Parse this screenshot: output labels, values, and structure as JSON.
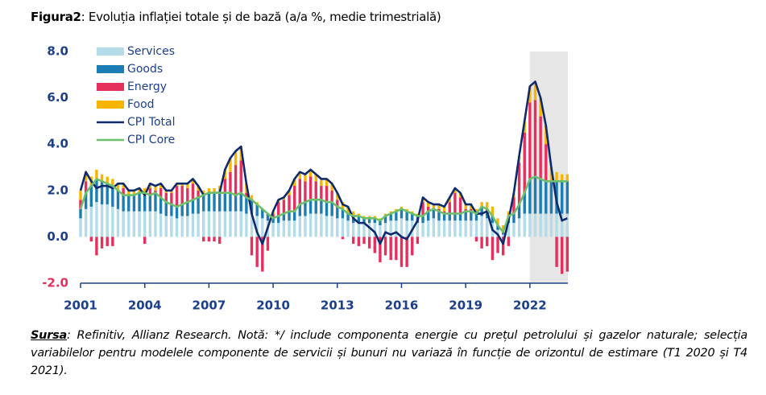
{
  "chart_data": {
    "type": "bar",
    "title_prefix": "Figura2",
    "title": ": Evoluția inflației totale și de bază (a/a %, medie trimestrială)",
    "source_label": "Sursa",
    "source_text": ": Refinitiv, Allianz Research. Notă: */ include componenta energie cu prețul petrolului și gazelor naturale; selecția variabilelor pentru modelele componente de servicii și bunuri nu variază în funcție de orizontul de estimare (T1 2020 și T4 2021).",
    "xlim": [
      2001,
      2024
    ],
    "xticks": [
      2001,
      2004,
      2007,
      2010,
      2013,
      2016,
      2019,
      2022
    ],
    "ylim": [
      -2,
      8
    ],
    "yticks": [
      {
        "value": -2,
        "label": "-2.0"
      },
      {
        "value": 0,
        "label": "0.0"
      },
      {
        "value": 2,
        "label": "2.0"
      },
      {
        "value": 4,
        "label": "4.0"
      },
      {
        "value": 6,
        "label": "6.0"
      },
      {
        "value": 8,
        "label": "8.0"
      }
    ],
    "shaded_x": [
      2022,
      2024
    ],
    "shade_color": "#e6e6e6",
    "x": [
      2001,
      2001.25,
      2001.5,
      2001.75,
      2002,
      2002.25,
      2002.5,
      2002.75,
      2003,
      2003.25,
      2003.5,
      2003.75,
      2004,
      2004.25,
      2004.5,
      2004.75,
      2005,
      2005.25,
      2005.5,
      2005.75,
      2006,
      2006.25,
      2006.5,
      2006.75,
      2007,
      2007.25,
      2007.5,
      2007.75,
      2008,
      2008.25,
      2008.5,
      2008.75,
      2009,
      2009.25,
      2009.5,
      2009.75,
      2010,
      2010.25,
      2010.5,
      2010.75,
      2011,
      2011.25,
      2011.5,
      2011.75,
      2012,
      2012.25,
      2012.5,
      2012.75,
      2013,
      2013.25,
      2013.5,
      2013.75,
      2014,
      2014.25,
      2014.5,
      2014.75,
      2015,
      2015.25,
      2015.5,
      2015.75,
      2016,
      2016.25,
      2016.5,
      2016.75,
      2017,
      2017.25,
      2017.5,
      2017.75,
      2018,
      2018.25,
      2018.5,
      2018.75,
      2019,
      2019.25,
      2019.5,
      2019.75,
      2020,
      2020.25,
      2020.5,
      2020.75,
      2021,
      2021.25,
      2021.5,
      2021.75,
      2022,
      2022.25,
      2022.5,
      2022.75,
      2023,
      2023.25,
      2023.5,
      2023.75
    ],
    "series": [
      {
        "name": "Services",
        "type": "bar",
        "color": "#b3dbe8",
        "values": [
          0.8,
          1.2,
          1.3,
          1.5,
          1.4,
          1.4,
          1.3,
          1.2,
          1.1,
          1.1,
          1.1,
          1.1,
          1.1,
          1.1,
          1.1,
          1.0,
          0.9,
          0.9,
          0.8,
          0.9,
          0.9,
          1.0,
          1.0,
          1.1,
          1.1,
          1.1,
          1.1,
          1.1,
          1.1,
          1.1,
          1.1,
          1.0,
          1.0,
          0.9,
          0.8,
          0.7,
          0.6,
          0.6,
          0.7,
          0.7,
          0.7,
          0.9,
          0.9,
          1.0,
          1.0,
          1.0,
          0.9,
          0.9,
          0.8,
          0.8,
          0.7,
          0.6,
          0.6,
          0.6,
          0.6,
          0.6,
          0.5,
          0.6,
          0.7,
          0.7,
          0.8,
          0.7,
          0.7,
          0.6,
          0.6,
          0.7,
          0.8,
          0.7,
          0.7,
          0.7,
          0.7,
          0.7,
          0.7,
          0.7,
          0.7,
          0.9,
          0.8,
          0.6,
          0.3,
          0.1,
          0.6,
          0.6,
          0.8,
          1.0,
          1.0,
          1.0,
          1.0,
          1.0,
          1.0,
          1.0,
          1.0,
          1.0
        ]
      },
      {
        "name": "Goods",
        "type": "bar",
        "color": "#1b7db3",
        "values": [
          0.4,
          0.7,
          0.9,
          1.0,
          1.0,
          0.9,
          0.9,
          0.8,
          0.7,
          0.7,
          0.7,
          0.8,
          0.8,
          0.7,
          0.8,
          0.7,
          0.6,
          0.5,
          0.5,
          0.5,
          0.6,
          0.6,
          0.7,
          0.7,
          0.8,
          0.8,
          0.8,
          0.8,
          0.8,
          0.7,
          0.8,
          0.7,
          0.6,
          0.5,
          0.4,
          0.3,
          0.2,
          0.3,
          0.3,
          0.4,
          0.4,
          0.5,
          0.6,
          0.6,
          0.6,
          0.6,
          0.6,
          0.6,
          0.5,
          0.4,
          0.3,
          0.3,
          0.3,
          0.2,
          0.2,
          0.2,
          0.2,
          0.3,
          0.3,
          0.4,
          0.4,
          0.4,
          0.3,
          0.3,
          0.3,
          0.4,
          0.4,
          0.4,
          0.3,
          0.3,
          0.3,
          0.3,
          0.4,
          0.4,
          0.3,
          0.4,
          0.4,
          0.3,
          0.2,
          0.1,
          0.3,
          0.4,
          0.6,
          0.9,
          1.5,
          1.6,
          1.5,
          1.4,
          1.4,
          1.4,
          1.4,
          1.4
        ]
      },
      {
        "name": "Energy",
        "type": "bar",
        "color": "#e5305e",
        "values": [
          0.4,
          0.5,
          -0.2,
          -0.8,
          -0.5,
          -0.4,
          -0.4,
          0.0,
          0.3,
          0.0,
          0.0,
          0.0,
          -0.3,
          0.3,
          0.1,
          0.4,
          0.4,
          0.5,
          0.9,
          0.8,
          0.6,
          0.7,
          0.3,
          -0.2,
          -0.2,
          -0.2,
          -0.3,
          0.6,
          0.9,
          1.3,
          1.4,
          0.2,
          -0.8,
          -1.3,
          -1.5,
          -0.6,
          0.2,
          0.6,
          0.6,
          0.7,
          1.1,
          1.1,
          0.9,
          1.0,
          0.8,
          0.6,
          0.7,
          0.5,
          0.3,
          -0.1,
          0.0,
          -0.3,
          -0.4,
          -0.3,
          -0.5,
          -0.7,
          -1.1,
          -0.8,
          -1.0,
          -1.0,
          -1.3,
          -1.3,
          -0.8,
          -0.3,
          0.6,
          0.2,
          0.0,
          0.1,
          0.1,
          0.5,
          0.9,
          0.7,
          0.1,
          0.1,
          -0.2,
          -0.5,
          -0.4,
          -1.0,
          -0.7,
          -0.8,
          -0.4,
          0.7,
          1.8,
          2.6,
          3.3,
          3.3,
          2.7,
          1.6,
          0.0,
          -1.3,
          -1.6,
          -1.5
        ]
      },
      {
        "name": "Food",
        "type": "bar",
        "color": "#f7b500",
        "values": [
          0.4,
          0.4,
          0.4,
          0.4,
          0.3,
          0.3,
          0.3,
          0.3,
          0.2,
          0.2,
          0.2,
          0.2,
          0.2,
          0.2,
          0.2,
          0.2,
          0.1,
          0.1,
          0.1,
          0.1,
          0.2,
          0.2,
          0.2,
          0.2,
          0.2,
          0.2,
          0.3,
          0.4,
          0.6,
          0.6,
          0.6,
          0.4,
          0.2,
          0.1,
          0.0,
          0.0,
          0.1,
          0.1,
          0.1,
          0.2,
          0.3,
          0.3,
          0.3,
          0.3,
          0.3,
          0.3,
          0.3,
          0.3,
          0.3,
          0.3,
          0.3,
          0.2,
          0.1,
          0.1,
          0.1,
          0.1,
          0.1,
          0.1,
          0.1,
          0.1,
          0.1,
          0.1,
          0.1,
          0.1,
          0.2,
          0.2,
          0.2,
          0.2,
          0.2,
          0.2,
          0.2,
          0.2,
          0.2,
          0.2,
          0.2,
          0.2,
          0.3,
          0.4,
          0.3,
          0.3,
          0.2,
          0.2,
          0.3,
          0.5,
          0.7,
          0.8,
          0.8,
          0.8,
          0.6,
          0.4,
          0.3,
          0.3
        ]
      },
      {
        "name": "CPI Total",
        "type": "line",
        "color": "#0e2a6e",
        "values": [
          2.0,
          2.8,
          2.4,
          2.1,
          2.2,
          2.2,
          2.1,
          2.3,
          2.3,
          2.0,
          2.0,
          2.1,
          1.8,
          2.3,
          2.2,
          2.3,
          2.0,
          2.0,
          2.3,
          2.3,
          2.3,
          2.5,
          2.2,
          1.8,
          1.9,
          1.9,
          1.9,
          2.9,
          3.4,
          3.7,
          3.9,
          2.3,
          1.0,
          0.2,
          -0.3,
          0.4,
          1.1,
          1.6,
          1.7,
          2.0,
          2.5,
          2.8,
          2.7,
          2.9,
          2.7,
          2.5,
          2.5,
          2.3,
          1.9,
          1.4,
          1.3,
          0.8,
          0.6,
          0.6,
          0.4,
          0.2,
          -0.3,
          0.2,
          0.1,
          0.2,
          0.0,
          -0.1,
          0.3,
          0.7,
          1.7,
          1.5,
          1.4,
          1.4,
          1.3,
          1.7,
          2.1,
          1.9,
          1.4,
          1.4,
          1.0,
          1.0,
          1.1,
          0.3,
          0.1,
          -0.3,
          0.7,
          1.9,
          3.5,
          5.0,
          6.5,
          6.7,
          6.0,
          4.8,
          3.0,
          1.5,
          0.7,
          0.8
        ]
      },
      {
        "name": "CPI Core",
        "type": "line",
        "color": "#6dbf6b",
        "values": [
          1.2,
          1.9,
          2.2,
          2.5,
          2.4,
          2.3,
          2.2,
          2.0,
          1.8,
          1.8,
          1.8,
          1.9,
          1.9,
          1.8,
          1.9,
          1.7,
          1.5,
          1.4,
          1.3,
          1.4,
          1.5,
          1.6,
          1.7,
          1.8,
          1.9,
          1.9,
          1.9,
          1.9,
          1.9,
          1.8,
          1.9,
          1.7,
          1.6,
          1.4,
          1.2,
          1.0,
          0.8,
          0.9,
          1.0,
          1.1,
          1.1,
          1.4,
          1.5,
          1.6,
          1.6,
          1.6,
          1.5,
          1.5,
          1.3,
          1.2,
          1.0,
          0.9,
          0.9,
          0.8,
          0.8,
          0.8,
          0.7,
          0.9,
          1.0,
          1.1,
          1.2,
          1.1,
          1.0,
          0.9,
          0.9,
          1.1,
          1.2,
          1.1,
          1.0,
          1.0,
          1.0,
          1.0,
          1.1,
          1.1,
          1.0,
          1.3,
          1.2,
          0.9,
          0.5,
          0.2,
          0.9,
          1.0,
          1.4,
          1.9,
          2.5,
          2.6,
          2.5,
          2.4,
          2.4,
          2.4,
          2.4,
          2.4
        ]
      }
    ]
  }
}
